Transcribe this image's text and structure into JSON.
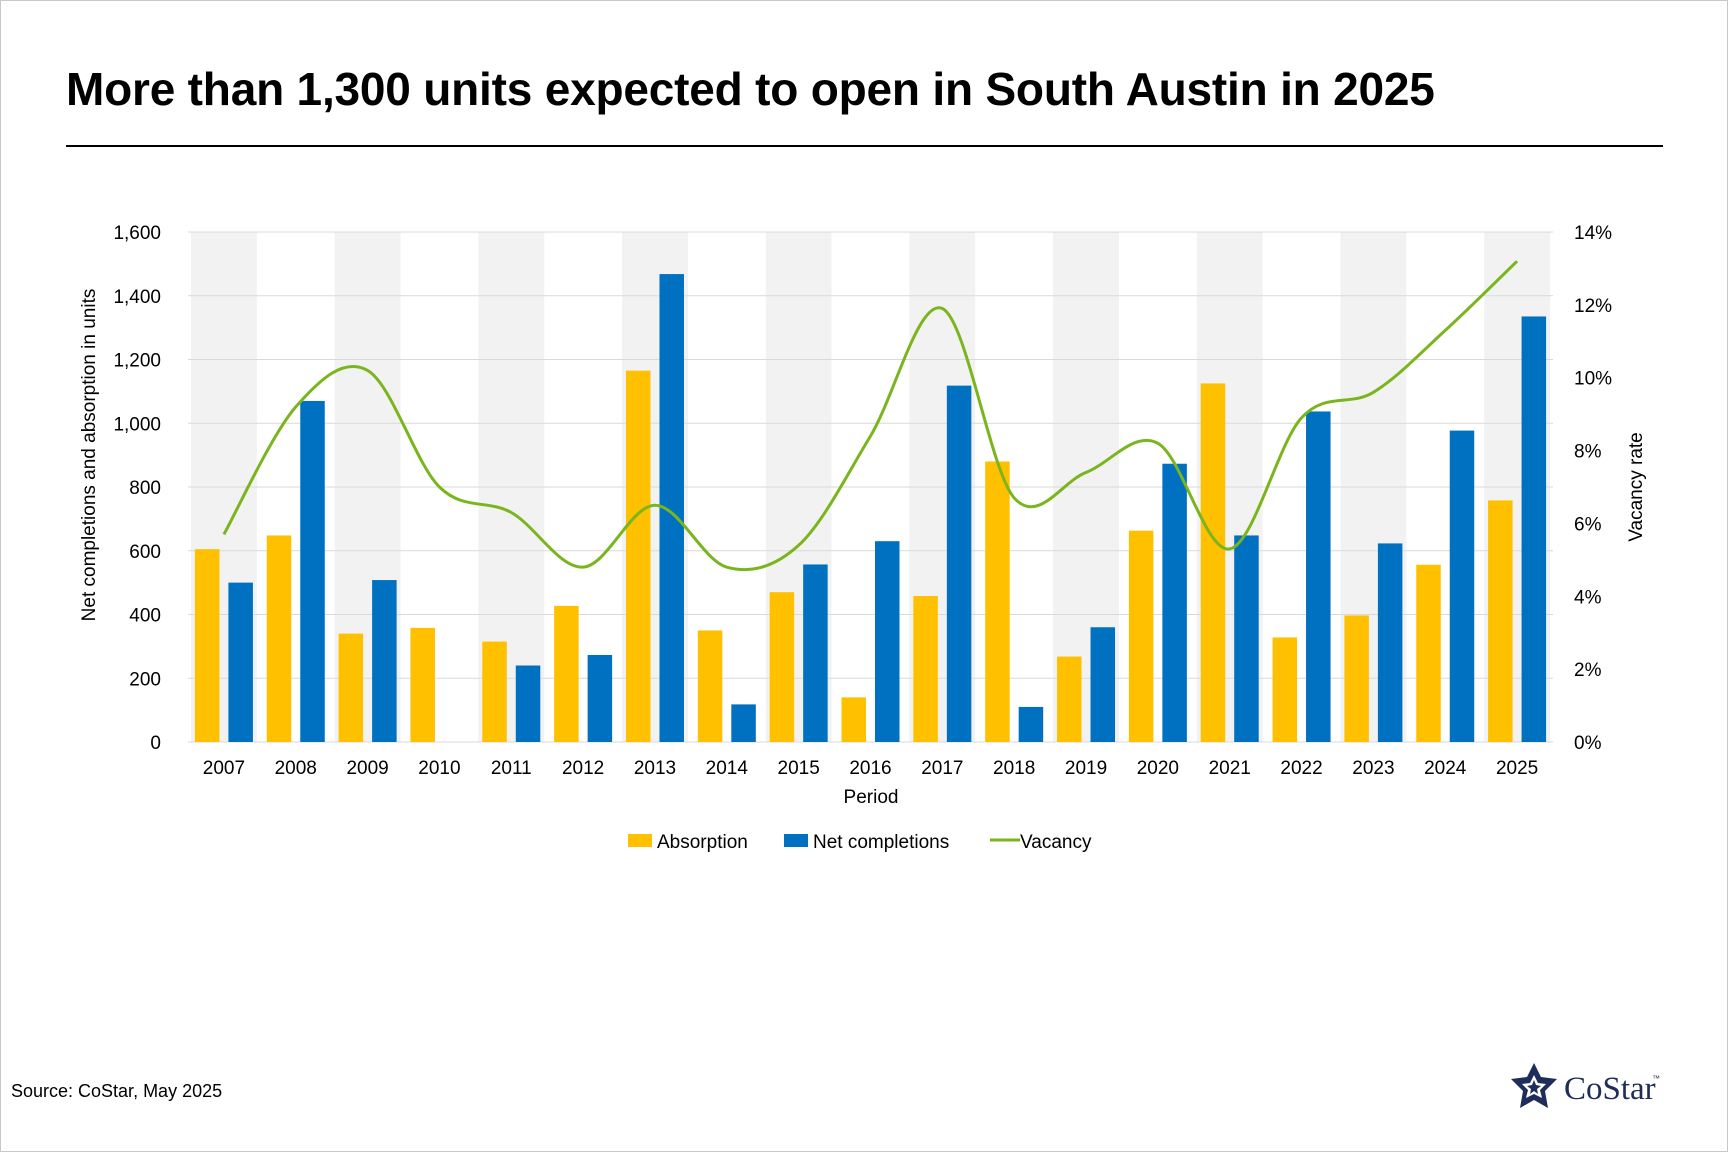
{
  "title": "More than 1,300 units expected to open in South Austin in 2025",
  "source": "Source: CoStar, May 2025",
  "logo": {
    "text": "CoStar",
    "tm": "™",
    "icon": "costar-star-logo"
  },
  "colors": {
    "absorption": "#FFC000",
    "net_completions": "#0070C0",
    "vacancy": "#7AB51D",
    "band": "#F2F2F2",
    "grid": "#D9D9D9"
  },
  "chart_data": {
    "type": "bar",
    "categories": [
      "2007",
      "2008",
      "2009",
      "2010",
      "2011",
      "2012",
      "2013",
      "2014",
      "2015",
      "2016",
      "2017",
      "2018",
      "2019",
      "2020",
      "2021",
      "2022",
      "2023",
      "2024",
      "2025"
    ],
    "series": [
      {
        "name": "Absorption",
        "type": "bar",
        "axis": "left",
        "values": [
          605,
          648,
          340,
          358,
          315,
          427,
          1165,
          350,
          470,
          140,
          458,
          880,
          268,
          663,
          1125,
          328,
          397,
          556,
          758
        ]
      },
      {
        "name": "Net completions",
        "type": "bar",
        "axis": "left",
        "values": [
          500,
          1070,
          508,
          0,
          240,
          273,
          1468,
          118,
          557,
          630,
          1118,
          110,
          360,
          873,
          648,
          1037,
          623,
          977,
          1335
        ]
      },
      {
        "name": "Vacancy",
        "type": "line",
        "axis": "right",
        "unit": "%",
        "values": [
          5.7,
          9.2,
          10.2,
          7.0,
          6.3,
          4.8,
          6.5,
          4.8,
          5.4,
          8.4,
          11.9,
          6.7,
          7.4,
          8.2,
          5.3,
          8.9,
          9.6,
          11.3,
          13.2
        ]
      }
    ],
    "xlabel": "Period",
    "ylabel": "Net completions and absorption in units",
    "y2label": "Vacancy rate",
    "ylim": [
      0,
      1600
    ],
    "yticks": [
      "0",
      "200",
      "400",
      "600",
      "800",
      "1,000",
      "1,200",
      "1,400",
      "1,600"
    ],
    "y2lim": [
      0,
      14
    ],
    "y2ticks": [
      "0%",
      "2%",
      "4%",
      "6%",
      "8%",
      "10%",
      "12%",
      "14%"
    ],
    "legend": [
      "Absorption",
      "Net completions",
      "Vacancy"
    ],
    "legend_position": "bottom",
    "grid": true,
    "alternating_year_bands": true
  }
}
